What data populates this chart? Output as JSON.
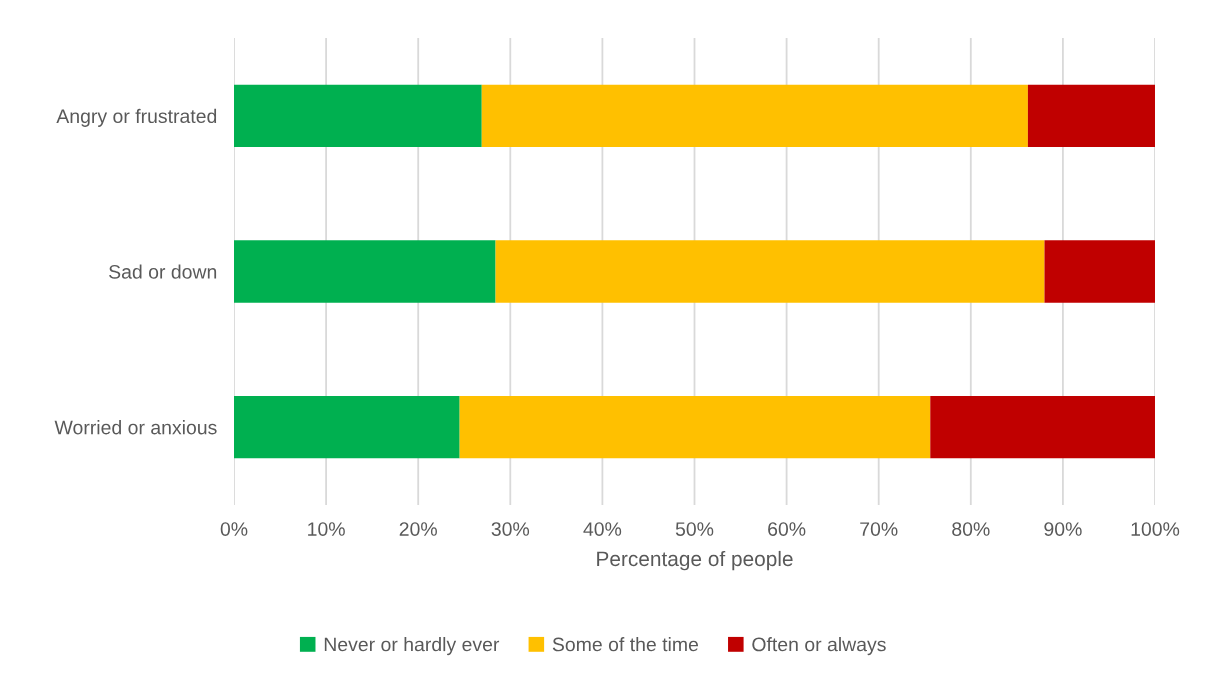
{
  "chart_data": {
    "type": "bar",
    "orientation": "horizontal",
    "stacked": true,
    "categories": [
      "Angry or frustrated",
      "Sad or down",
      "Worried or anxious"
    ],
    "series": [
      {
        "name": "Never or hardly ever",
        "color": "#00b050",
        "values": [
          26.9,
          28.4,
          24.5
        ]
      },
      {
        "name": "Some of the time",
        "color": "#ffc000",
        "values": [
          59.3,
          59.6,
          51.1
        ]
      },
      {
        "name": "Often or always",
        "color": "#c00000",
        "values": [
          13.8,
          12.0,
          24.4
        ]
      }
    ],
    "xlabel": "Percentage of people",
    "xlim": [
      0,
      100
    ],
    "xticks": [
      {
        "value": 0,
        "label": "0%"
      },
      {
        "value": 10,
        "label": "10%"
      },
      {
        "value": 20,
        "label": "20%"
      },
      {
        "value": 30,
        "label": "30%"
      },
      {
        "value": 40,
        "label": "40%"
      },
      {
        "value": 50,
        "label": "50%"
      },
      {
        "value": 60,
        "label": "60%"
      },
      {
        "value": 70,
        "label": "70%"
      },
      {
        "value": 80,
        "label": "80%"
      },
      {
        "value": 90,
        "label": "90%"
      },
      {
        "value": 100,
        "label": "100%"
      }
    ],
    "grid": "x",
    "legend": "bottom"
  }
}
